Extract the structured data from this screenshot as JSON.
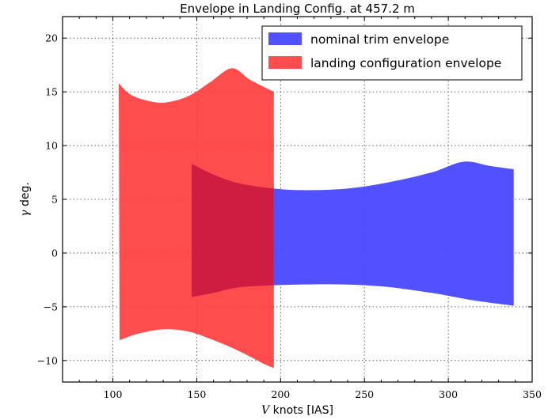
{
  "chart_data": {
    "type": "area",
    "title": "Envelope in Landing Config. at 457.2 m",
    "xlabel": "V knots [IAS]",
    "xlabel_symbol": "V",
    "xlabel_rest": " knots [IAS]",
    "ylabel": "γ deg.",
    "ylabel_symbol": "γ",
    "ylabel_rest": " deg.",
    "xlim": [
      70,
      350
    ],
    "ylim": [
      -12,
      22
    ],
    "xticks": [
      100,
      150,
      200,
      250,
      300,
      350
    ],
    "yticks": [
      -10,
      -5,
      0,
      5,
      10,
      15,
      20
    ],
    "ytick_labels": [
      "−10",
      "−5",
      "0",
      "5",
      "10",
      "15",
      "20"
    ],
    "grid": true,
    "legend_position": "top-right",
    "series": [
      {
        "name": "nominal trim envelope",
        "color": "#4848ff",
        "opacity": 0.95,
        "upper": [
          [
            147,
            8.3
          ],
          [
            160,
            7.3
          ],
          [
            175,
            6.5
          ],
          [
            196,
            6.0
          ],
          [
            215,
            5.85
          ],
          [
            240,
            6.0
          ],
          [
            265,
            6.6
          ],
          [
            290,
            7.5
          ],
          [
            309,
            8.5
          ],
          [
            325,
            8.1
          ],
          [
            339,
            7.8
          ]
        ],
        "lower": [
          [
            147,
            -4.1
          ],
          [
            160,
            -3.7
          ],
          [
            175,
            -3.2
          ],
          [
            196,
            -3.0
          ],
          [
            230,
            -2.9
          ],
          [
            260,
            -3.1
          ],
          [
            290,
            -3.7
          ],
          [
            315,
            -4.4
          ],
          [
            339,
            -4.9
          ]
        ]
      },
      {
        "name": "landing configuration envelope",
        "color": "#ff4040",
        "opacity": 0.93,
        "upper": [
          [
            103.5,
            15.8
          ],
          [
            110,
            14.8
          ],
          [
            120,
            14.2
          ],
          [
            131,
            14.0
          ],
          [
            145,
            14.6
          ],
          [
            158,
            15.9
          ],
          [
            171,
            17.2
          ],
          [
            182,
            16.1
          ],
          [
            196,
            15.0
          ]
        ],
        "lower": [
          [
            104,
            -8.1
          ],
          [
            115,
            -7.5
          ],
          [
            130,
            -7.1
          ],
          [
            145,
            -7.3
          ],
          [
            160,
            -8.1
          ],
          [
            175,
            -9.1
          ],
          [
            190,
            -10.3
          ],
          [
            196,
            -10.7
          ]
        ]
      }
    ]
  }
}
